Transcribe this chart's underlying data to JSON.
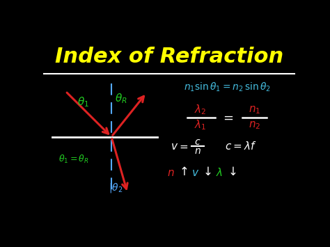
{
  "bg_color": "#000000",
  "title": "Index of Refraction",
  "title_color": "#FFFF00",
  "title_fontsize": 22,
  "separator_color": "#FFFFFF",
  "line_color_white": "#FFFFFF",
  "line_color_red": "#DD2222",
  "line_color_blue": "#55AAFF",
  "line_color_green": "#22CC22",
  "line_color_cyan": "#44BBDD",
  "text_color_white": "#FFFFFF",
  "text_color_red": "#DD2222",
  "text_color_blue": "#55AAFF",
  "text_color_green": "#22CC22",
  "text_color_cyan": "#44BBDD"
}
